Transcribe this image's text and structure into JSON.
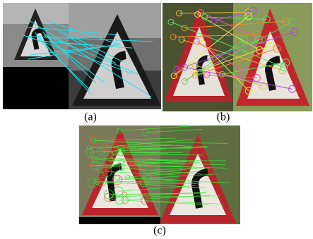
{
  "figure": {
    "subfigures": [
      {
        "label": "(a)"
      },
      {
        "label": "(b)"
      },
      {
        "label": "(c)"
      }
    ]
  }
}
